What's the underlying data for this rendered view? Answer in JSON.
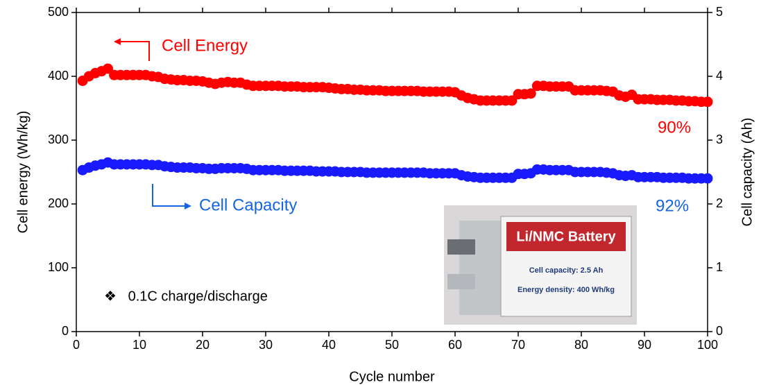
{
  "chart_data": {
    "type": "scatter",
    "x_label": "Cycle number",
    "y_label": "Cell energy (Wh/kg)",
    "y2_label": "Cell capacity (Ah)",
    "x": [
      1,
      2,
      3,
      4,
      5,
      6,
      7,
      8,
      9,
      10,
      11,
      12,
      13,
      14,
      15,
      16,
      17,
      18,
      19,
      20,
      21,
      22,
      23,
      24,
      25,
      26,
      27,
      28,
      29,
      30,
      31,
      32,
      33,
      34,
      35,
      36,
      37,
      38,
      39,
      40,
      41,
      42,
      43,
      44,
      45,
      46,
      47,
      48,
      49,
      50,
      51,
      52,
      53,
      54,
      55,
      56,
      57,
      58,
      59,
      60,
      61,
      62,
      63,
      64,
      65,
      66,
      67,
      68,
      69,
      70,
      71,
      72,
      73,
      74,
      75,
      76,
      77,
      78,
      79,
      80,
      81,
      82,
      83,
      84,
      85,
      86,
      87,
      88,
      89,
      90,
      91,
      92,
      93,
      94,
      95,
      96,
      97,
      98,
      99,
      100
    ],
    "series": [
      {
        "name": "Cell Energy",
        "color": "#ff0000",
        "values": [
          393,
          400,
          405,
          408,
          412,
          402,
          402,
          402,
          402,
          402,
          402,
          400,
          399,
          396,
          395,
          394,
          394,
          393,
          393,
          392,
          390,
          388,
          390,
          391,
          390,
          390,
          387,
          385,
          385,
          385,
          385,
          385,
          384,
          384,
          384,
          383,
          383,
          383,
          383,
          382,
          381,
          380,
          380,
          379,
          379,
          378,
          378,
          378,
          377,
          377,
          377,
          377,
          377,
          377,
          376,
          376,
          376,
          376,
          376,
          375,
          370,
          366,
          364,
          362,
          362,
          362,
          362,
          362,
          362,
          372,
          372,
          373,
          385,
          385,
          384,
          384,
          384,
          384,
          378,
          378,
          378,
          378,
          378,
          377,
          376,
          370,
          368,
          371,
          364,
          364,
          364,
          363,
          363,
          363,
          362,
          362,
          361,
          361,
          360,
          360
        ]
      },
      {
        "name": "Cell Capacity",
        "color": "#1a1aff",
        "axis": "y2",
        "values": [
          2.53,
          2.57,
          2.6,
          2.62,
          2.65,
          2.62,
          2.62,
          2.62,
          2.62,
          2.62,
          2.62,
          2.61,
          2.61,
          2.59,
          2.58,
          2.57,
          2.57,
          2.57,
          2.56,
          2.56,
          2.55,
          2.55,
          2.56,
          2.56,
          2.56,
          2.56,
          2.55,
          2.53,
          2.53,
          2.53,
          2.53,
          2.53,
          2.52,
          2.52,
          2.52,
          2.52,
          2.52,
          2.51,
          2.51,
          2.51,
          2.51,
          2.5,
          2.5,
          2.5,
          2.5,
          2.49,
          2.49,
          2.49,
          2.49,
          2.49,
          2.49,
          2.49,
          2.49,
          2.49,
          2.49,
          2.48,
          2.48,
          2.48,
          2.48,
          2.48,
          2.45,
          2.43,
          2.42,
          2.41,
          2.41,
          2.41,
          2.41,
          2.41,
          2.41,
          2.47,
          2.47,
          2.48,
          2.54,
          2.54,
          2.53,
          2.53,
          2.53,
          2.53,
          2.5,
          2.5,
          2.5,
          2.5,
          2.5,
          2.49,
          2.48,
          2.45,
          2.44,
          2.45,
          2.42,
          2.42,
          2.42,
          2.42,
          2.41,
          2.41,
          2.41,
          2.41,
          2.4,
          2.4,
          2.4,
          2.4
        ]
      }
    ],
    "retention_labels": [
      "90%",
      "92%"
    ],
    "note": "❖   0.1C charge/discharge",
    "inset": {
      "title": "Li/NMC Battery",
      "lines": [
        "Cell capacity: 2.5 Ah",
        "Energy density: 400 Wh/kg"
      ]
    },
    "xlim": [
      0,
      100
    ],
    "xticks": [
      0,
      10,
      20,
      30,
      40,
      50,
      60,
      70,
      80,
      90,
      100
    ],
    "ylim": [
      0,
      500
    ],
    "yticks": [
      0,
      100,
      200,
      300,
      400,
      500
    ],
    "y2lim": [
      0,
      5
    ],
    "y2ticks": [
      0,
      1,
      2,
      3,
      4,
      5
    ]
  }
}
